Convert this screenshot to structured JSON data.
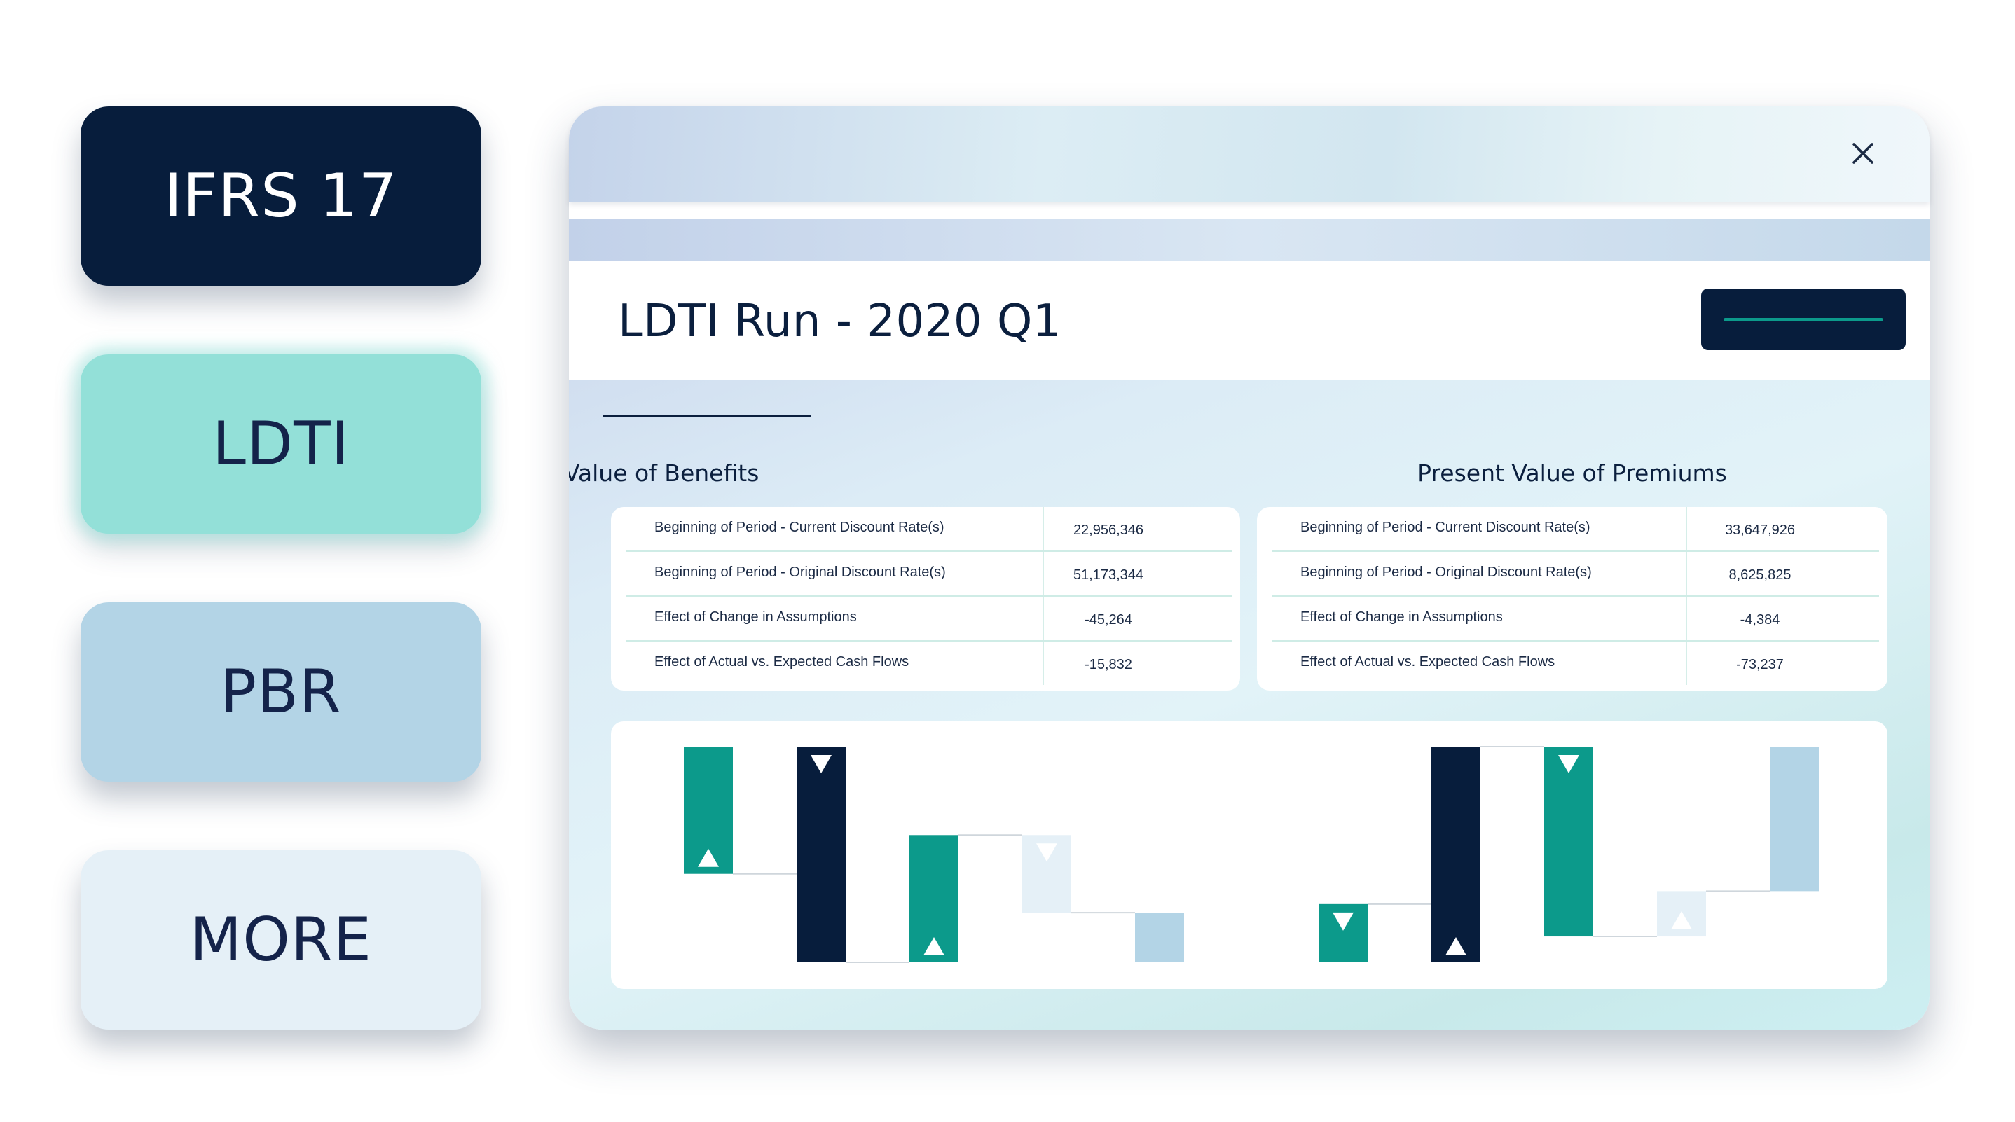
{
  "sidebar": {
    "items": [
      {
        "label": "IFRS 17"
      },
      {
        "label": "LDTI"
      },
      {
        "label": "PBR"
      },
      {
        "label": "MORE"
      }
    ]
  },
  "window": {
    "close_icon": "close-icon",
    "title": "LDTI Run - 2020 Q1"
  },
  "benefits": {
    "title": "Present Value of Benefits",
    "rows": [
      {
        "label": "Beginning of Period - Current Discount Rate(s)",
        "value": "22,956,346"
      },
      {
        "label": "Beginning of Period - Original Discount Rate(s)",
        "value": "51,173,344"
      },
      {
        "label": "Effect of Change in Assumptions",
        "value": "-45,264"
      },
      {
        "label": "Effect of Actual vs. Expected Cash Flows",
        "value": "-15,832"
      }
    ]
  },
  "premiums": {
    "title": "Present Value of Premiums",
    "rows": [
      {
        "label": "Beginning of Period - Current Discount Rate(s)",
        "value": "33,647,926"
      },
      {
        "label": "Beginning of Period - Original Discount Rate(s)",
        "value": "8,625,825"
      },
      {
        "label": "Effect of Change in Assumptions",
        "value": "-4,384"
      },
      {
        "label": "Effect of Actual vs. Expected Cash Flows",
        "value": "-73,237"
      }
    ]
  },
  "colors": {
    "navy": "#071d3c",
    "teal": "#0c9a8b",
    "mint": "#93e0d8",
    "light_blue": "#b3d4e6",
    "pale_blue": "#e5f0f7"
  },
  "chart_data": [
    {
      "type": "bar",
      "subtype": "waterfall",
      "ylim": [
        0,
        100
      ],
      "bars": [
        {
          "start": 100,
          "end": 41,
          "color": "#0c9a8b",
          "marker": "up"
        },
        {
          "start": 100,
          "end": 0,
          "color": "#071d3c",
          "marker": "down"
        },
        {
          "start": 0,
          "end": 59,
          "color": "#0c9a8b",
          "marker": "up"
        },
        {
          "start": 59,
          "end": 23,
          "color": "#e5f0f7",
          "marker": "down"
        },
        {
          "start": 23,
          "end": 0,
          "color": "#b3d4e6",
          "marker": "none"
        }
      ]
    },
    {
      "type": "bar",
      "subtype": "waterfall",
      "ylim": [
        0,
        100
      ],
      "bars": [
        {
          "start": 0,
          "end": 27,
          "color": "#0c9a8b",
          "marker": "down"
        },
        {
          "start": 0,
          "end": 100,
          "color": "#071d3c",
          "marker": "up"
        },
        {
          "start": 100,
          "end": 12,
          "color": "#0c9a8b",
          "marker": "down"
        },
        {
          "start": 12,
          "end": 33,
          "color": "#e5f0f7",
          "marker": "up"
        },
        {
          "start": 33,
          "end": 100,
          "color": "#b3d4e6",
          "marker": "none"
        }
      ]
    }
  ]
}
